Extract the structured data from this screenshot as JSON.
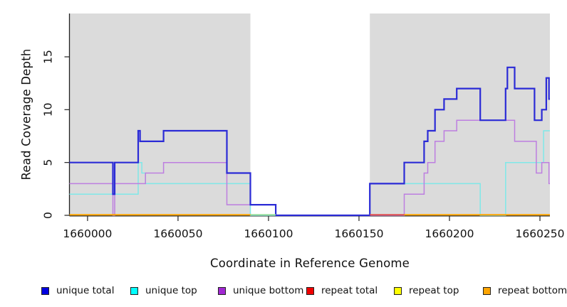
{
  "chart_data": {
    "type": "line",
    "subtype": "step-coverage",
    "title": "",
    "xlabel": "Coordinate in Reference Genome",
    "ylabel": "Read Coverage Depth",
    "xlim": [
      1659990,
      1660255.5
    ],
    "ylim": [
      0,
      19.1
    ],
    "grid": false,
    "x_ticks": [
      {
        "value": 1660000,
        "label": "1660000"
      },
      {
        "value": 1660050,
        "label": "1660050"
      },
      {
        "value": 1660100,
        "label": "1660100"
      },
      {
        "value": 1660150,
        "label": "1660150"
      },
      {
        "value": 1660200,
        "label": "1660200"
      },
      {
        "value": 1660250,
        "label": "1660250"
      }
    ],
    "y_ticks": [
      {
        "value": 0,
        "label": "0"
      },
      {
        "value": 5,
        "label": "5"
      },
      {
        "value": 10,
        "label": "10"
      },
      {
        "value": 15,
        "label": "15"
      }
    ],
    "shaded_regions": [
      {
        "from": 1659990,
        "to": 1660090,
        "color": "#DBDBDB"
      },
      {
        "from": 1660156,
        "to": 1660255.5,
        "color": "#DBDBDB"
      }
    ],
    "series": [
      {
        "name": "unique total",
        "legend_color": "#0000E0",
        "line_color": "#2B2BD6",
        "line_width": 2.2,
        "steps": [
          [
            1659990,
            5
          ],
          [
            1660014,
            2
          ],
          [
            1660015,
            5
          ],
          [
            1660028,
            8
          ],
          [
            1660029,
            7
          ],
          [
            1660042,
            8
          ],
          [
            1660077,
            4
          ],
          [
            1660090,
            1
          ],
          [
            1660104,
            0
          ],
          [
            1660156,
            3
          ],
          [
            1660175,
            5
          ],
          [
            1660186,
            7
          ],
          [
            1660188,
            8
          ],
          [
            1660192,
            10
          ],
          [
            1660197,
            11
          ],
          [
            1660204,
            12
          ],
          [
            1660217,
            9
          ],
          [
            1660231,
            12
          ],
          [
            1660232,
            14
          ],
          [
            1660236,
            12
          ],
          [
            1660247,
            9
          ],
          [
            1660251,
            10
          ],
          [
            1660253.5,
            13
          ],
          [
            1660255,
            11
          ]
        ]
      },
      {
        "name": "unique top",
        "legend_color": "#00FFFF",
        "line_color": "#7FE8E8",
        "line_width": 1.5,
        "steps": [
          [
            1659990,
            2
          ],
          [
            1660028,
            5
          ],
          [
            1660030,
            4
          ],
          [
            1660032,
            3
          ],
          [
            1660090,
            0
          ],
          [
            1660156,
            3
          ],
          [
            1660217,
            0
          ],
          [
            1660231,
            5
          ],
          [
            1660252,
            8
          ]
        ]
      },
      {
        "name": "unique bottom",
        "legend_color": "#A228D3",
        "line_color": "#BD7EE0",
        "line_width": 1.5,
        "steps": [
          [
            1659990,
            3
          ],
          [
            1660014,
            0
          ],
          [
            1660015,
            3
          ],
          [
            1660032,
            4
          ],
          [
            1660042,
            5
          ],
          [
            1660077,
            1
          ],
          [
            1660104,
            0
          ],
          [
            1660175,
            2
          ],
          [
            1660186,
            4
          ],
          [
            1660188,
            5
          ],
          [
            1660192,
            7
          ],
          [
            1660197,
            8
          ],
          [
            1660204,
            9
          ],
          [
            1660236,
            7
          ],
          [
            1660248,
            4
          ],
          [
            1660251,
            5
          ],
          [
            1660255,
            3
          ]
        ]
      },
      {
        "name": "repeat total",
        "legend_color": "#F00000",
        "line_color": "#E15050",
        "line_width": 2,
        "segments": [
          {
            "from": 1660156,
            "to": 1660175,
            "value": 0
          }
        ]
      },
      {
        "name": "repeat top",
        "legend_color": "#FFFF00",
        "line_color": "#98E0A0",
        "line_width": 2,
        "segments": [
          {
            "from": 1660090,
            "to": 1660104,
            "value": 0
          }
        ]
      },
      {
        "name": "repeat bottom",
        "legend_color": "#FFA500",
        "line_color": "#FFA500",
        "line_width": 2,
        "segments": [
          {
            "from": 1659990,
            "to": 1660090,
            "value": 0
          },
          {
            "from": 1660175,
            "to": 1660255.5,
            "value": 0
          }
        ]
      }
    ],
    "legend": {
      "position": "bottom",
      "item_x": [
        58,
        183,
        306,
        430,
        553,
        678
      ],
      "items": [
        "unique total",
        "unique top",
        "unique bottom",
        "repeat total",
        "repeat top",
        "repeat bottom"
      ]
    },
    "axis_color": "#222222",
    "tick_label_color": "#111111"
  }
}
